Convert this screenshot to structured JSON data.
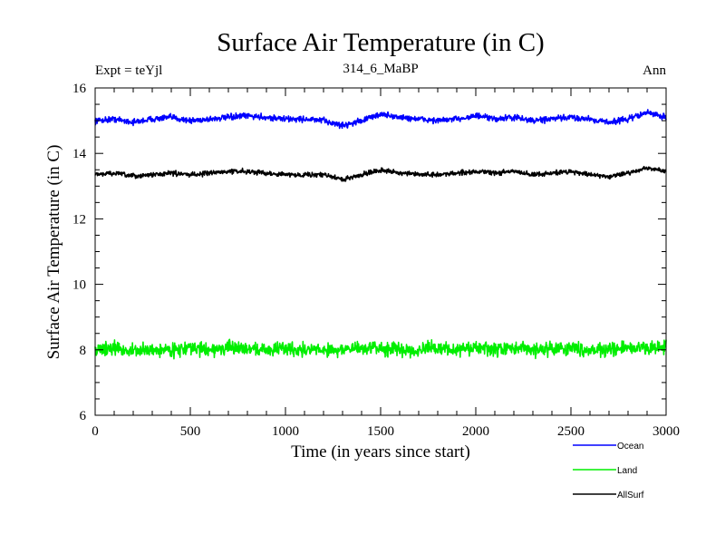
{
  "chart_data": {
    "type": "line",
    "title": "Surface Air Temperature (in C)",
    "subtitle_left": "Expt = teYjl",
    "subtitle_center": "314_6_MaBP",
    "subtitle_right": "Ann",
    "xlabel": "Time (in years since start)",
    "ylabel": "Surface Air Temperature (in C)",
    "xlim": [
      0,
      3000
    ],
    "ylim": [
      6,
      16
    ],
    "xticks": [
      0,
      500,
      1000,
      1500,
      2000,
      2500,
      3000
    ],
    "yticks": [
      6,
      8,
      10,
      12,
      14,
      16
    ],
    "xtick_labels": [
      "0",
      "500",
      "1000",
      "1500",
      "2000",
      "2500",
      "3000"
    ],
    "ytick_labels": [
      "6",
      "8",
      "10",
      "12",
      "14",
      "16"
    ],
    "x_start": 0,
    "x_step": 100,
    "series": [
      {
        "name": "Ocean",
        "color": "#0000ff",
        "noise": 0.09,
        "values": [
          15.0,
          15.05,
          14.95,
          15.05,
          15.1,
          15.0,
          15.05,
          15.1,
          15.15,
          15.1,
          15.05,
          15.05,
          15.0,
          14.85,
          15.0,
          15.2,
          15.1,
          15.05,
          15.0,
          15.05,
          15.15,
          15.05,
          15.1,
          15.0,
          15.05,
          15.1,
          15.05,
          14.95,
          15.05,
          15.25,
          15.1
        ]
      },
      {
        "name": "Land",
        "color": "#00ee00",
        "noise": 0.2,
        "values": [
          8.0,
          8.05,
          7.95,
          8.0,
          8.0,
          8.05,
          8.0,
          8.05,
          8.05,
          8.0,
          8.05,
          8.0,
          8.0,
          8.0,
          8.05,
          8.05,
          8.0,
          8.0,
          8.05,
          8.0,
          8.05,
          8.0,
          8.05,
          8.0,
          8.05,
          8.05,
          8.0,
          8.0,
          8.05,
          8.05,
          8.1
        ]
      },
      {
        "name": "AllSurf",
        "color": "#000000",
        "noise": 0.07,
        "values": [
          13.35,
          13.4,
          13.3,
          13.35,
          13.4,
          13.35,
          13.4,
          13.45,
          13.45,
          13.4,
          13.35,
          13.35,
          13.35,
          13.2,
          13.35,
          13.5,
          13.4,
          13.35,
          13.35,
          13.4,
          13.45,
          13.4,
          13.45,
          13.35,
          13.4,
          13.45,
          13.35,
          13.3,
          13.4,
          13.55,
          13.45
        ]
      }
    ],
    "legend_position": "bottom-right"
  }
}
